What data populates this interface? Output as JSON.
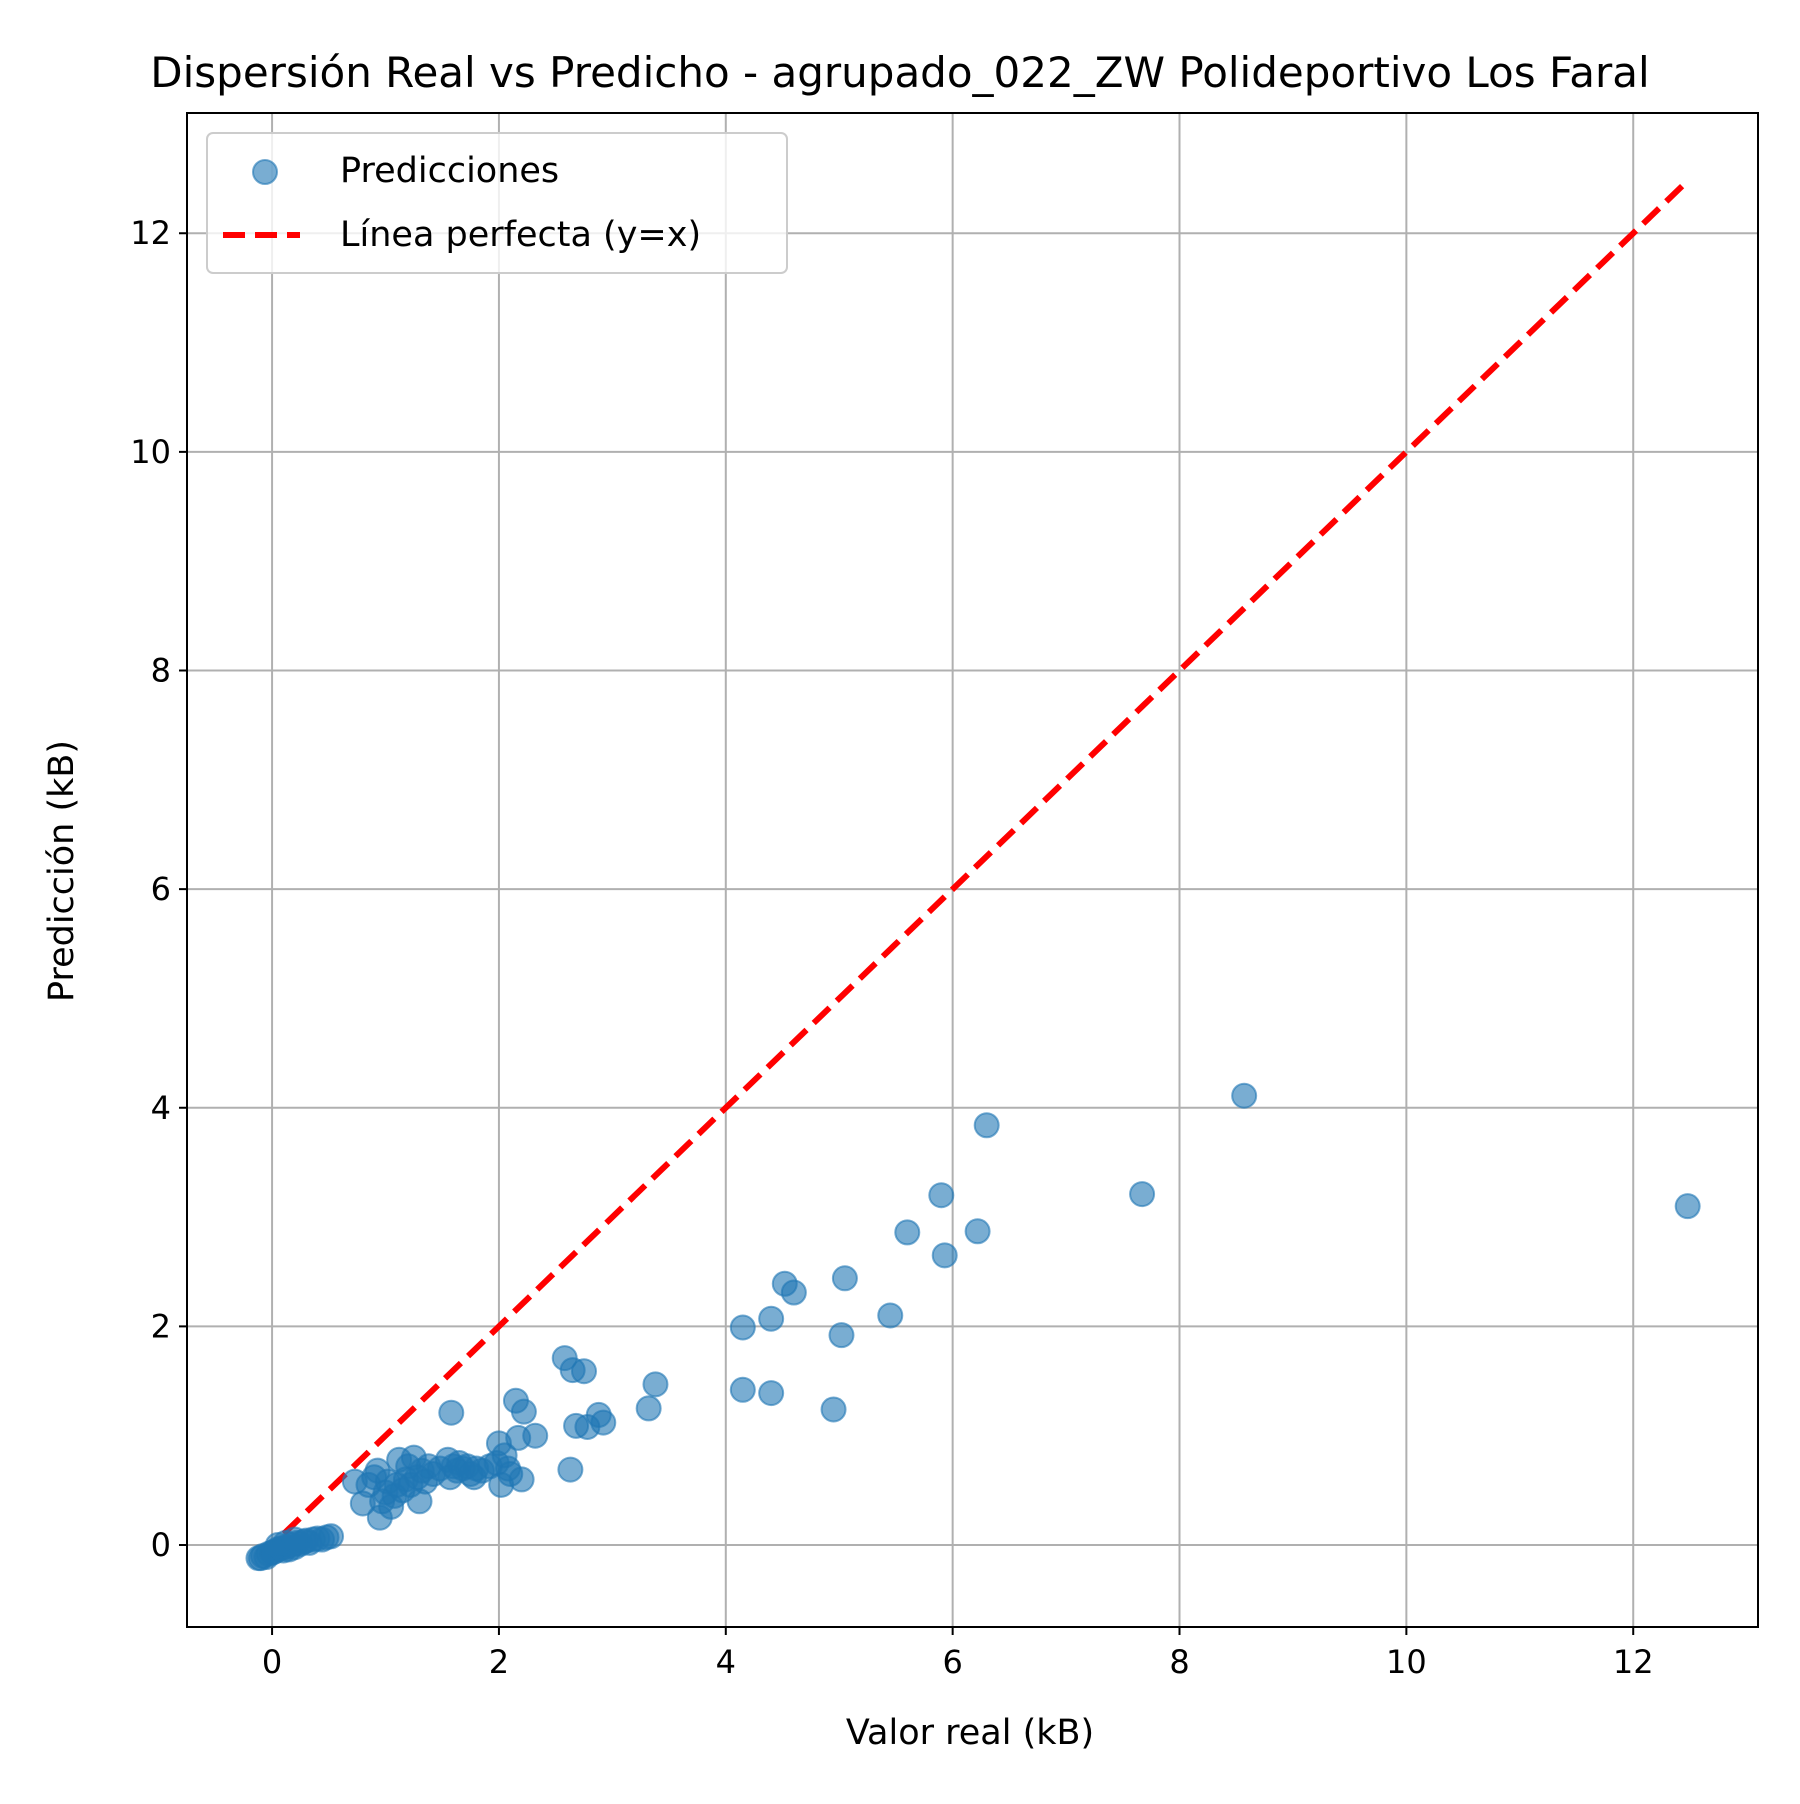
{
  "chart_data": {
    "type": "scatter",
    "title": "Dispersión Real vs Predicho - agrupado_022_ZW Polideportivo Los Faral",
    "xlabel": "Valor real (kB)",
    "ylabel": "Predicción (kB)",
    "xlim": [
      -0.75,
      13.1
    ],
    "ylim": [
      -0.75,
      13.1
    ],
    "xticks": [
      0,
      2,
      4,
      6,
      8,
      10,
      12
    ],
    "yticks": [
      0,
      2,
      4,
      6,
      8,
      10,
      12
    ],
    "grid": true,
    "legend_position": "top-left",
    "series": [
      {
        "name": "Predicciones",
        "kind": "scatter",
        "color": "#1f77b4",
        "alpha": 0.6,
        "points": [
          [
            -0.12,
            -0.12
          ],
          [
            -0.1,
            -0.12
          ],
          [
            -0.08,
            -0.1
          ],
          [
            -0.05,
            -0.11
          ],
          [
            -0.03,
            -0.08
          ],
          [
            0.0,
            -0.07
          ],
          [
            0.02,
            -0.06
          ],
          [
            0.05,
            -0.04
          ],
          [
            0.08,
            -0.03
          ],
          [
            0.1,
            -0.05
          ],
          [
            0.12,
            -0.02
          ],
          [
            0.15,
            -0.04
          ],
          [
            0.18,
            0.0
          ],
          [
            0.2,
            -0.02
          ],
          [
            0.22,
            0.02
          ],
          [
            0.25,
            0.01
          ],
          [
            0.28,
            0.03
          ],
          [
            0.3,
            0.04
          ],
          [
            0.33,
            0.02
          ],
          [
            0.36,
            0.05
          ],
          [
            0.4,
            0.06
          ],
          [
            0.44,
            0.05
          ],
          [
            0.48,
            0.07
          ],
          [
            0.52,
            0.08
          ],
          [
            0.05,
            0.0
          ],
          [
            0.12,
            0.02
          ],
          [
            0.2,
            0.05
          ],
          [
            0.73,
            0.58
          ],
          [
            0.8,
            0.38
          ],
          [
            0.85,
            0.55
          ],
          [
            0.9,
            0.62
          ],
          [
            0.93,
            0.68
          ],
          [
            0.95,
            0.25
          ],
          [
            0.97,
            0.4
          ],
          [
            1.0,
            0.48
          ],
          [
            1.02,
            0.58
          ],
          [
            1.05,
            0.35
          ],
          [
            1.08,
            0.45
          ],
          [
            1.1,
            0.55
          ],
          [
            1.12,
            0.78
          ],
          [
            1.15,
            0.5
          ],
          [
            1.18,
            0.6
          ],
          [
            1.2,
            0.72
          ],
          [
            1.22,
            0.55
          ],
          [
            1.25,
            0.8
          ],
          [
            1.28,
            0.62
          ],
          [
            1.3,
            0.4
          ],
          [
            1.32,
            0.68
          ],
          [
            1.35,
            0.58
          ],
          [
            1.38,
            0.72
          ],
          [
            1.42,
            0.65
          ],
          [
            1.48,
            0.7
          ],
          [
            1.55,
            0.78
          ],
          [
            1.57,
            0.62
          ],
          [
            1.58,
            1.21
          ],
          [
            1.6,
            0.72
          ],
          [
            1.63,
            0.68
          ],
          [
            1.65,
            0.75
          ],
          [
            1.68,
            0.7
          ],
          [
            1.72,
            0.72
          ],
          [
            1.75,
            0.65
          ],
          [
            1.78,
            0.62
          ],
          [
            1.8,
            0.7
          ],
          [
            1.85,
            0.68
          ],
          [
            1.92,
            0.72
          ],
          [
            1.98,
            0.75
          ],
          [
            2.0,
            0.93
          ],
          [
            2.02,
            0.55
          ],
          [
            2.05,
            0.82
          ],
          [
            2.08,
            0.7
          ],
          [
            2.1,
            0.65
          ],
          [
            2.15,
            1.32
          ],
          [
            2.17,
            0.98
          ],
          [
            2.2,
            0.6
          ],
          [
            2.22,
            1.22
          ],
          [
            2.32,
            1.0
          ],
          [
            2.58,
            1.71
          ],
          [
            2.63,
            0.69
          ],
          [
            2.65,
            1.6
          ],
          [
            2.68,
            1.09
          ],
          [
            2.75,
            1.59
          ],
          [
            2.78,
            1.08
          ],
          [
            2.88,
            1.19
          ],
          [
            2.92,
            1.12
          ],
          [
            3.32,
            1.25
          ],
          [
            3.38,
            1.47
          ],
          [
            4.15,
            1.99
          ],
          [
            4.15,
            1.42
          ],
          [
            4.4,
            2.07
          ],
          [
            4.4,
            1.39
          ],
          [
            4.52,
            2.39
          ],
          [
            4.6,
            2.31
          ],
          [
            4.95,
            1.24
          ],
          [
            5.02,
            1.92
          ],
          [
            5.05,
            2.44
          ],
          [
            5.45,
            2.1
          ],
          [
            5.6,
            2.86
          ],
          [
            5.9,
            3.2
          ],
          [
            5.93,
            2.65
          ],
          [
            6.22,
            2.87
          ],
          [
            6.3,
            3.84
          ],
          [
            7.67,
            3.21
          ],
          [
            8.57,
            4.11
          ],
          [
            12.48,
            3.1
          ]
        ]
      },
      {
        "name": "Línea perfecta (y=x)",
        "kind": "line",
        "color": "#ff0000",
        "dashed": true,
        "x": [
          -0.1,
          12.45
        ],
        "y": [
          -0.1,
          12.45
        ]
      }
    ]
  }
}
